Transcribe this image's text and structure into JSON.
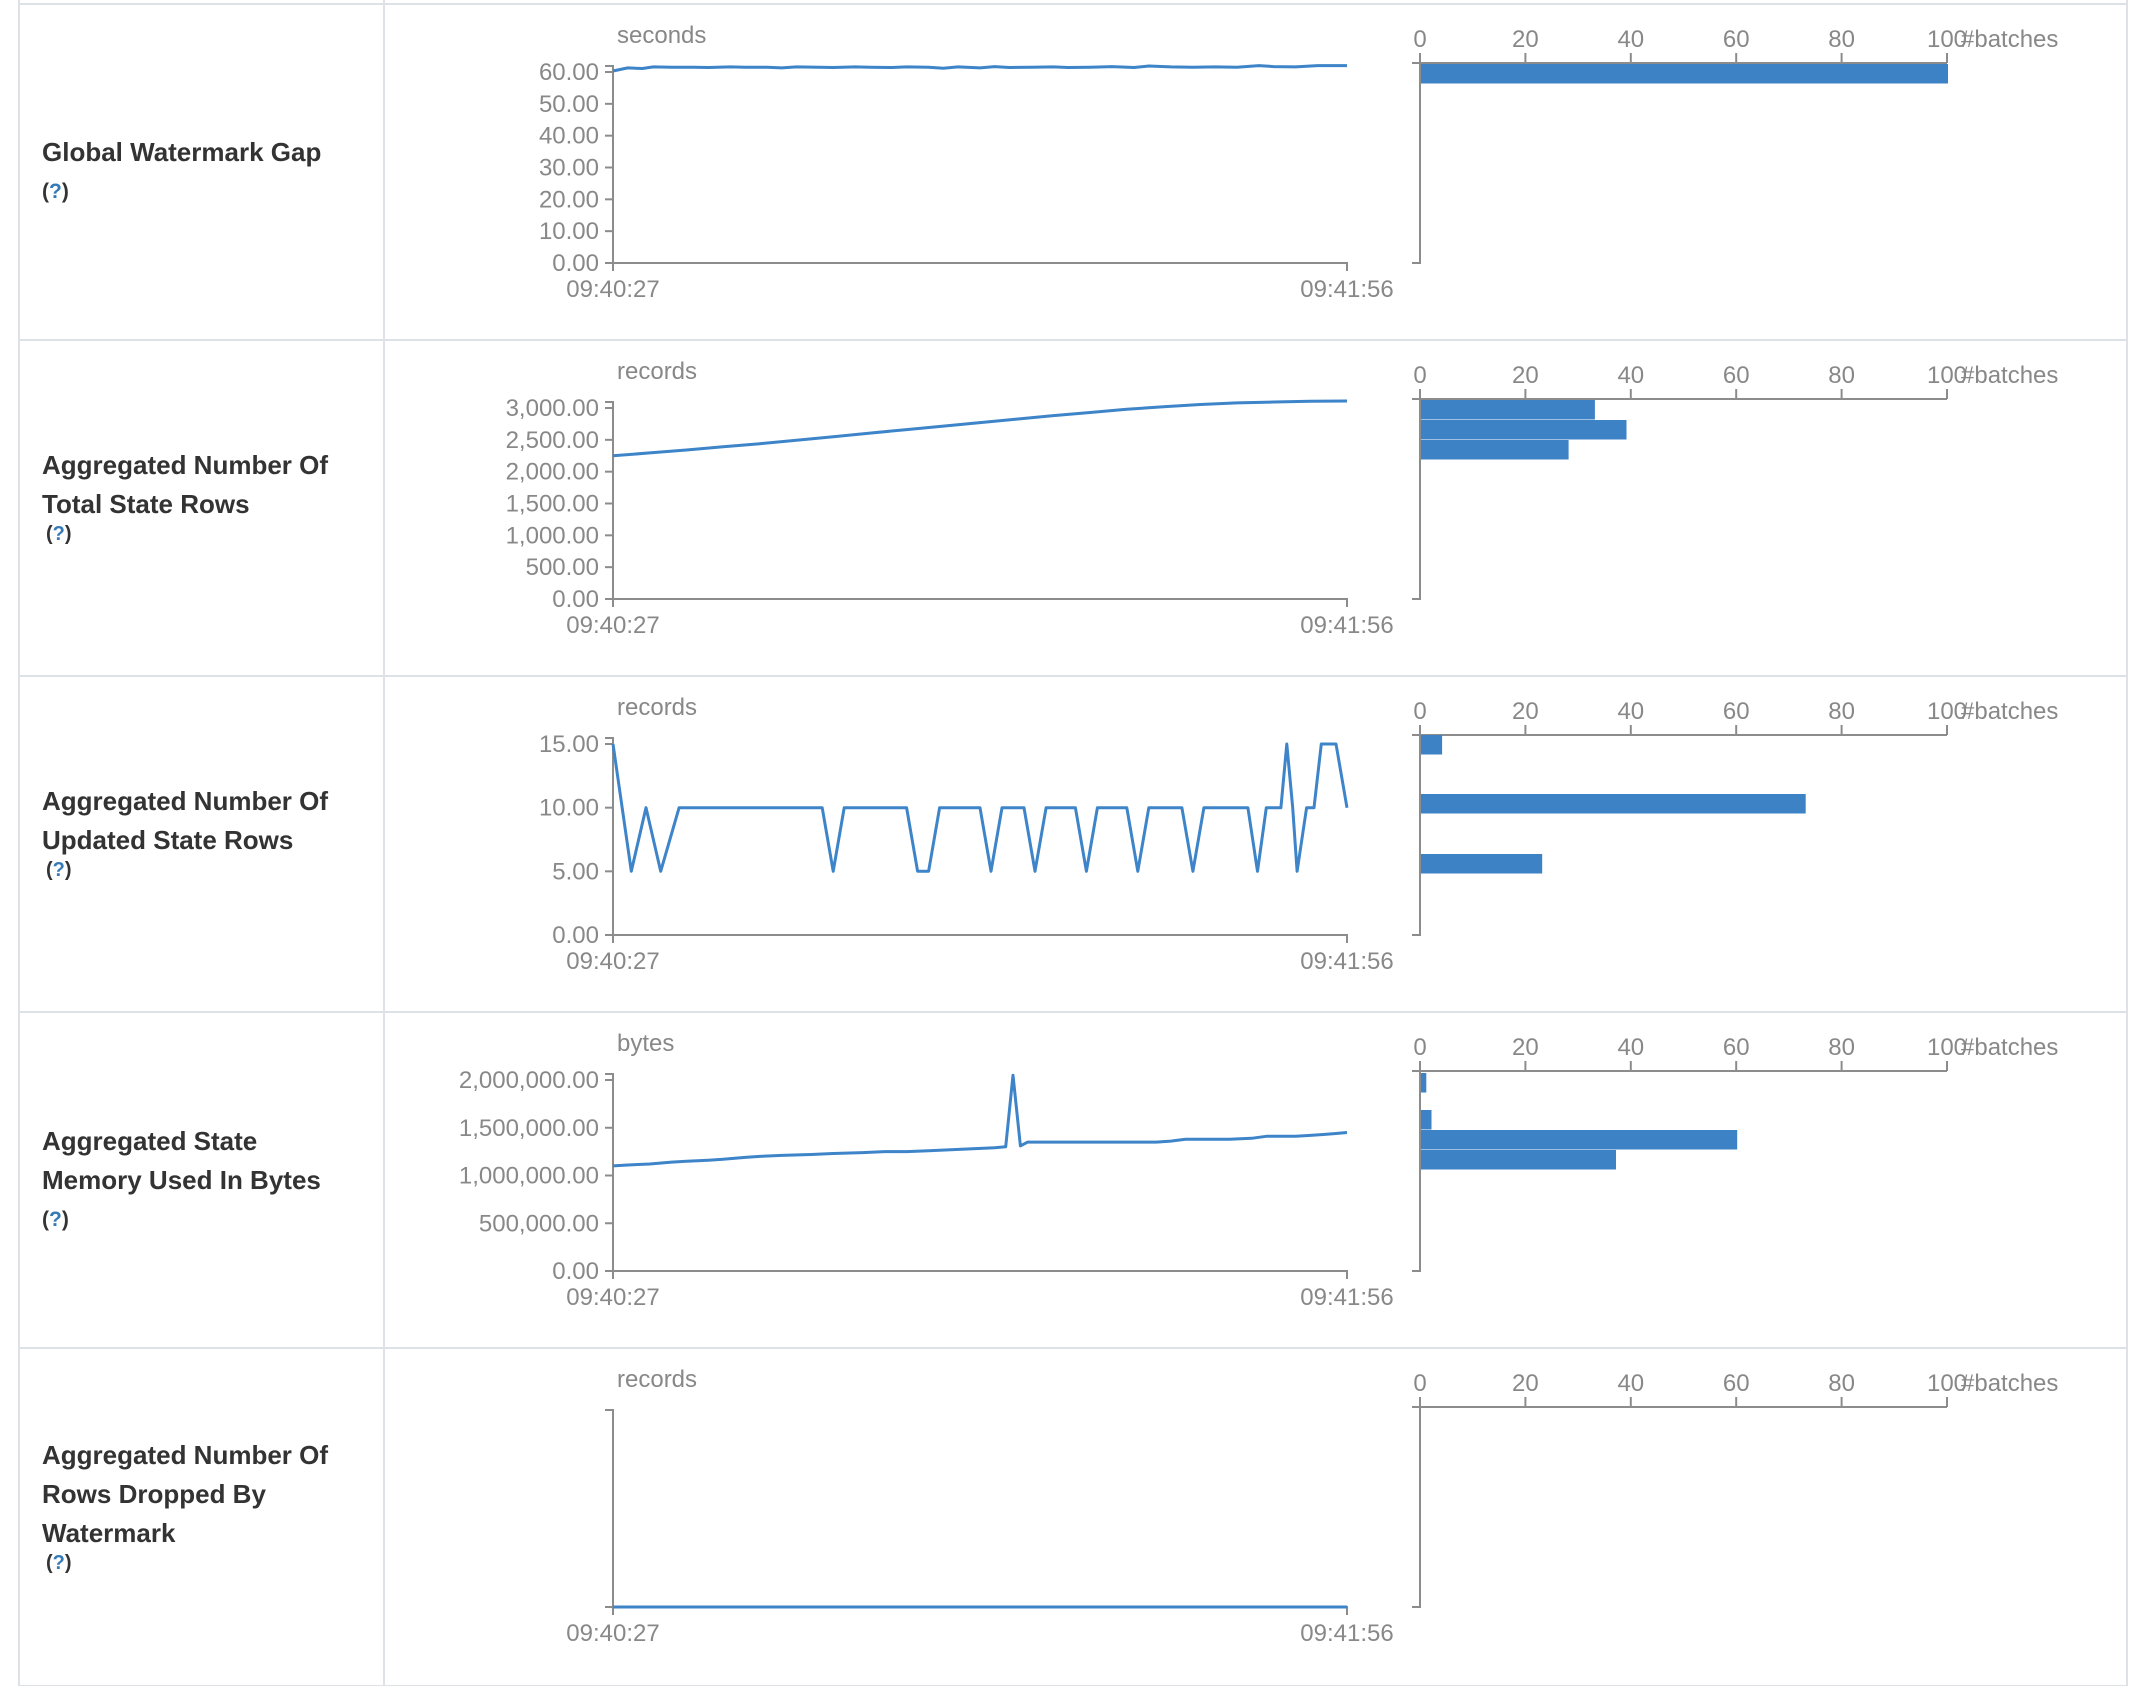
{
  "colors": {
    "line_blue": "#3d84c8",
    "bar_blue": "#3c82c4",
    "axis_gray": "#8c8c8c",
    "text_gray": "#888888",
    "label_text": "#333333",
    "help_link_blue": "#337ab7",
    "table_border": "#dee2e6"
  },
  "timeline_axis": {
    "start_label": "09:40:27",
    "end_label": "09:41:56"
  },
  "histogram_axis": {
    "tick_labels": [
      "0",
      "20",
      "40",
      "60",
      "80",
      "100"
    ],
    "tick_values": [
      0,
      20,
      40,
      60,
      80,
      100
    ],
    "unit_label": "#batches",
    "max": 100
  },
  "rows": [
    {
      "label_lines": [
        "Global Watermark Gap"
      ],
      "help": {
        "open": "(",
        "q": "?",
        "close": ")",
        "position": "own-line"
      }
    },
    {
      "label_lines": [
        "Aggregated Number Of",
        "Total State Rows"
      ],
      "help": {
        "open": "(",
        "q": "?",
        "close": ")",
        "position": "inline"
      }
    },
    {
      "label_lines": [
        "Aggregated Number Of",
        "Updated State Rows"
      ],
      "help": {
        "open": "(",
        "q": "?",
        "close": ")",
        "position": "inline"
      }
    },
    {
      "label_lines": [
        "Aggregated State",
        "Memory Used In Bytes"
      ],
      "help": {
        "open": "(",
        "q": "?",
        "close": ")",
        "position": "own-line"
      }
    },
    {
      "label_lines": [
        "Aggregated Number Of",
        "Rows Dropped By",
        "Watermark"
      ],
      "help": {
        "open": "(",
        "q": "?",
        "close": ")",
        "position": "inline"
      }
    }
  ],
  "chart_data": [
    {
      "type": "line+histogram",
      "title": "Global Watermark Gap",
      "unit": "seconds",
      "x_start": "09:40:27",
      "x_end": "09:41:56",
      "y_max": 60,
      "y_ticks": [
        {
          "label": "60.00",
          "v": 60
        },
        {
          "label": "50.00",
          "v": 50
        },
        {
          "label": "40.00",
          "v": 40
        },
        {
          "label": "30.00",
          "v": 30
        },
        {
          "label": "20.00",
          "v": 20
        },
        {
          "label": "10.00",
          "v": 10
        },
        {
          "label": "0.00",
          "v": 0
        }
      ],
      "line_points": [
        [
          0,
          60.3
        ],
        [
          0.02,
          61.3
        ],
        [
          0.04,
          61.1
        ],
        [
          0.055,
          61.6
        ],
        [
          0.08,
          61.5
        ],
        [
          0.11,
          61.5
        ],
        [
          0.13,
          61.4
        ],
        [
          0.16,
          61.6
        ],
        [
          0.18,
          61.5
        ],
        [
          0.21,
          61.5
        ],
        [
          0.23,
          61.3
        ],
        [
          0.25,
          61.6
        ],
        [
          0.28,
          61.5
        ],
        [
          0.3,
          61.4
        ],
        [
          0.33,
          61.6
        ],
        [
          0.35,
          61.5
        ],
        [
          0.38,
          61.4
        ],
        [
          0.4,
          61.6
        ],
        [
          0.43,
          61.5
        ],
        [
          0.45,
          61.2
        ],
        [
          0.47,
          61.6
        ],
        [
          0.5,
          61.3
        ],
        [
          0.52,
          61.7
        ],
        [
          0.54,
          61.4
        ],
        [
          0.57,
          61.5
        ],
        [
          0.6,
          61.6
        ],
        [
          0.62,
          61.4
        ],
        [
          0.65,
          61.5
        ],
        [
          0.68,
          61.7
        ],
        [
          0.71,
          61.4
        ],
        [
          0.73,
          61.9
        ],
        [
          0.76,
          61.6
        ],
        [
          0.79,
          61.5
        ],
        [
          0.82,
          61.6
        ],
        [
          0.85,
          61.5
        ],
        [
          0.88,
          62.0
        ],
        [
          0.9,
          61.7
        ],
        [
          0.93,
          61.6
        ],
        [
          0.96,
          62.0
        ],
        [
          1,
          62.0
        ]
      ],
      "histogram_bars": [
        {
          "y": 59,
          "count": 100,
          "bucket_value": 61
        }
      ]
    },
    {
      "type": "line+histogram",
      "title": "Aggregated Number Of Total State Rows",
      "unit": "records",
      "x_start": "09:40:27",
      "x_end": "09:41:56",
      "y_max": 3000,
      "y_ticks": [
        {
          "label": "3,000.00",
          "v": 3000
        },
        {
          "label": "2,500.00",
          "v": 2500
        },
        {
          "label": "2,000.00",
          "v": 2000
        },
        {
          "label": "1,500.00",
          "v": 1500
        },
        {
          "label": "1,000.00",
          "v": 1000
        },
        {
          "label": "500.00",
          "v": 500
        },
        {
          "label": "0.00",
          "v": 0
        }
      ],
      "line_points": [
        [
          0,
          2250
        ],
        [
          0.05,
          2295
        ],
        [
          0.1,
          2340
        ],
        [
          0.15,
          2390
        ],
        [
          0.2,
          2440
        ],
        [
          0.25,
          2495
        ],
        [
          0.3,
          2550
        ],
        [
          0.35,
          2605
        ],
        [
          0.4,
          2660
        ],
        [
          0.45,
          2715
        ],
        [
          0.5,
          2770
        ],
        [
          0.55,
          2825
        ],
        [
          0.6,
          2880
        ],
        [
          0.65,
          2930
        ],
        [
          0.7,
          2980
        ],
        [
          0.75,
          3020
        ],
        [
          0.8,
          3055
        ],
        [
          0.85,
          3080
        ],
        [
          0.9,
          3095
        ],
        [
          0.95,
          3105
        ],
        [
          1,
          3110
        ]
      ],
      "histogram_bars": [
        {
          "y": 59,
          "count": 33,
          "bucket_value": 2950
        },
        {
          "y": 79,
          "count": 39,
          "bucket_value": 2650
        },
        {
          "y": 99,
          "count": 28,
          "bucket_value": 2350
        }
      ]
    },
    {
      "type": "line+histogram",
      "title": "Aggregated Number Of Updated State Rows",
      "unit": "records",
      "x_start": "09:40:27",
      "x_end": "09:41:56",
      "y_max": 15,
      "y_ticks": [
        {
          "label": "15.00",
          "v": 15
        },
        {
          "label": "10.00",
          "v": 10
        },
        {
          "label": "5.00",
          "v": 5
        },
        {
          "label": "0.00",
          "v": 0
        }
      ],
      "line_points": [
        [
          0,
          15
        ],
        [
          0.025,
          5
        ],
        [
          0.045,
          10
        ],
        [
          0.065,
          5
        ],
        [
          0.09,
          10
        ],
        [
          0.285,
          10
        ],
        [
          0.3,
          5
        ],
        [
          0.315,
          10
        ],
        [
          0.4,
          10
        ],
        [
          0.415,
          5
        ],
        [
          0.43,
          5
        ],
        [
          0.445,
          10
        ],
        [
          0.5,
          10
        ],
        [
          0.515,
          5
        ],
        [
          0.53,
          10
        ],
        [
          0.56,
          10
        ],
        [
          0.575,
          5
        ],
        [
          0.59,
          10
        ],
        [
          0.63,
          10
        ],
        [
          0.645,
          5
        ],
        [
          0.66,
          10
        ],
        [
          0.7,
          10
        ],
        [
          0.715,
          5
        ],
        [
          0.73,
          10
        ],
        [
          0.775,
          10
        ],
        [
          0.79,
          5
        ],
        [
          0.805,
          10
        ],
        [
          0.865,
          10
        ],
        [
          0.878,
          5
        ],
        [
          0.89,
          10
        ],
        [
          0.91,
          10
        ],
        [
          0.918,
          15
        ],
        [
          0.926,
          10
        ],
        [
          0.932,
          5
        ],
        [
          0.945,
          10
        ],
        [
          0.955,
          10
        ],
        [
          0.965,
          15
        ],
        [
          0.985,
          15
        ],
        [
          1,
          10
        ]
      ],
      "histogram_bars": [
        {
          "y": 58,
          "count": 4,
          "bucket_value": 15
        },
        {
          "y": 117,
          "count": 73,
          "bucket_value": 10
        },
        {
          "y": 177,
          "count": 23,
          "bucket_value": 5
        }
      ]
    },
    {
      "type": "line+histogram",
      "title": "Aggregated State Memory Used In Bytes",
      "unit": "bytes",
      "x_start": "09:40:27",
      "x_end": "09:41:56",
      "y_max": 2000000,
      "y_ticks": [
        {
          "label": "2,000,000.00",
          "v": 2000000
        },
        {
          "label": "1,500,000.00",
          "v": 1500000
        },
        {
          "label": "1,000,000.00",
          "v": 1000000
        },
        {
          "label": "500,000.00",
          "v": 500000
        },
        {
          "label": "0.00",
          "v": 0
        }
      ],
      "line_points": [
        [
          0,
          1100000
        ],
        [
          0.02,
          1110000
        ],
        [
          0.05,
          1120000
        ],
        [
          0.08,
          1140000
        ],
        [
          0.1,
          1150000
        ],
        [
          0.13,
          1160000
        ],
        [
          0.15,
          1170000
        ],
        [
          0.18,
          1190000
        ],
        [
          0.2,
          1200000
        ],
        [
          0.23,
          1210000
        ],
        [
          0.27,
          1220000
        ],
        [
          0.3,
          1230000
        ],
        [
          0.34,
          1240000
        ],
        [
          0.37,
          1250000
        ],
        [
          0.4,
          1250000
        ],
        [
          0.43,
          1260000
        ],
        [
          0.46,
          1270000
        ],
        [
          0.49,
          1280000
        ],
        [
          0.52,
          1290000
        ],
        [
          0.535,
          1300000
        ],
        [
          0.545,
          2050000
        ],
        [
          0.555,
          1310000
        ],
        [
          0.565,
          1350000
        ],
        [
          0.62,
          1350000
        ],
        [
          0.68,
          1350000
        ],
        [
          0.74,
          1350000
        ],
        [
          0.76,
          1360000
        ],
        [
          0.78,
          1380000
        ],
        [
          0.84,
          1380000
        ],
        [
          0.87,
          1390000
        ],
        [
          0.89,
          1410000
        ],
        [
          0.93,
          1410000
        ],
        [
          0.95,
          1420000
        ],
        [
          0.97,
          1430000
        ],
        [
          0.985,
          1440000
        ],
        [
          1,
          1450000
        ]
      ],
      "histogram_bars": [
        {
          "y": 60,
          "count": 1,
          "bucket_value": 2050000
        },
        {
          "y": 97,
          "count": 2,
          "bucket_value": 1600000
        },
        {
          "y": 117,
          "count": 60,
          "bucket_value": 1430000
        },
        {
          "y": 137,
          "count": 37,
          "bucket_value": 1220000
        }
      ]
    },
    {
      "type": "line+histogram",
      "title": "Aggregated Number Of Rows Dropped By Watermark",
      "unit": "records",
      "x_start": "09:40:27",
      "x_end": "09:41:56",
      "y_max": 1,
      "y_ticks": [],
      "line_points": [
        [
          0,
          0
        ],
        [
          1,
          0
        ]
      ],
      "histogram_bars": []
    }
  ]
}
